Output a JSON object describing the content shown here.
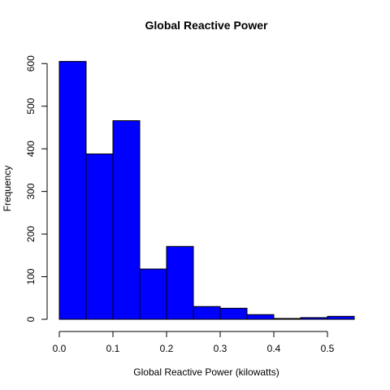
{
  "chart_data": {
    "type": "bar",
    "title": "Global Reactive Power",
    "xlabel": "Global Reactive Power (kilowatts)",
    "ylabel": "Frequency",
    "bin_edges": [
      0.0,
      0.05,
      0.1,
      0.15,
      0.2,
      0.25,
      0.3,
      0.35,
      0.4,
      0.45,
      0.5,
      0.55
    ],
    "values": [
      605,
      388,
      466,
      118,
      171,
      30,
      26,
      11,
      2,
      4,
      7
    ],
    "xlim": [
      0.0,
      0.55
    ],
    "ylim": [
      0,
      610
    ],
    "x_ticks": [
      "0.0",
      "0.1",
      "0.2",
      "0.3",
      "0.4",
      "0.5"
    ],
    "y_ticks": [
      "0",
      "100",
      "200",
      "300",
      "400",
      "500",
      "600"
    ],
    "bar_color": "#0000ff",
    "bar_border_color": "#000000",
    "grid": false
  }
}
